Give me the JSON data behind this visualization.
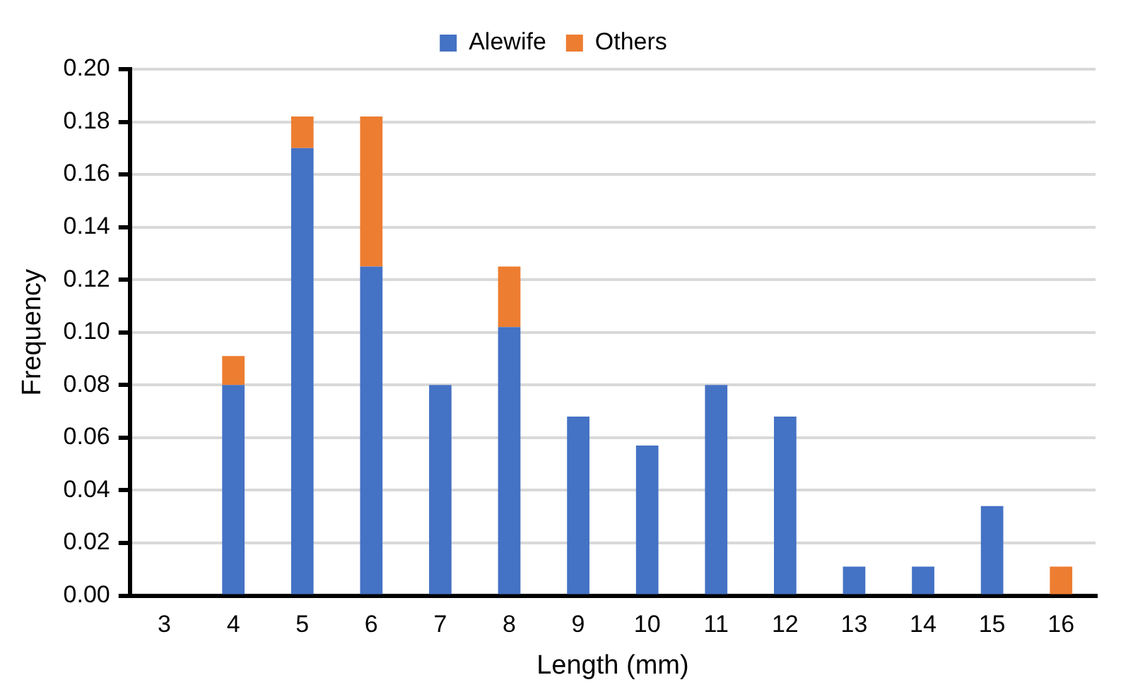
{
  "chart_data": {
    "type": "bar",
    "stacked": true,
    "xlabel": "Length (mm)",
    "ylabel": "Frequency",
    "categories": [
      "3",
      "4",
      "5",
      "6",
      "7",
      "8",
      "9",
      "10",
      "11",
      "12",
      "13",
      "14",
      "15",
      "16"
    ],
    "series": [
      {
        "name": "Alewife",
        "color": "#4472c4",
        "values": [
          0,
          0.08,
          0.17,
          0.125,
          0.08,
          0.102,
          0.068,
          0.057,
          0.08,
          0.068,
          0.011,
          0.011,
          0.034,
          0
        ]
      },
      {
        "name": "Others",
        "color": "#ed7d31",
        "values": [
          0,
          0.011,
          0.012,
          0.057,
          0,
          0.023,
          0,
          0,
          0,
          0,
          0,
          0,
          0,
          0.011
        ]
      }
    ],
    "ylim": [
      0,
      0.2
    ],
    "yticks": [
      {
        "value": 0,
        "label": "0.00"
      },
      {
        "value": 0.02,
        "label": "0.02"
      },
      {
        "value": 0.04,
        "label": "0.04"
      },
      {
        "value": 0.06,
        "label": "0.06"
      },
      {
        "value": 0.08,
        "label": "0.08"
      },
      {
        "value": 0.1,
        "label": "0.10"
      },
      {
        "value": 0.12,
        "label": "0.12"
      },
      {
        "value": 0.14,
        "label": "0.14"
      },
      {
        "value": 0.16,
        "label": "0.16"
      },
      {
        "value": 0.18,
        "label": "0.18"
      },
      {
        "value": 0.2,
        "label": "0.20"
      }
    ],
    "grid": "y",
    "legend": "top"
  }
}
